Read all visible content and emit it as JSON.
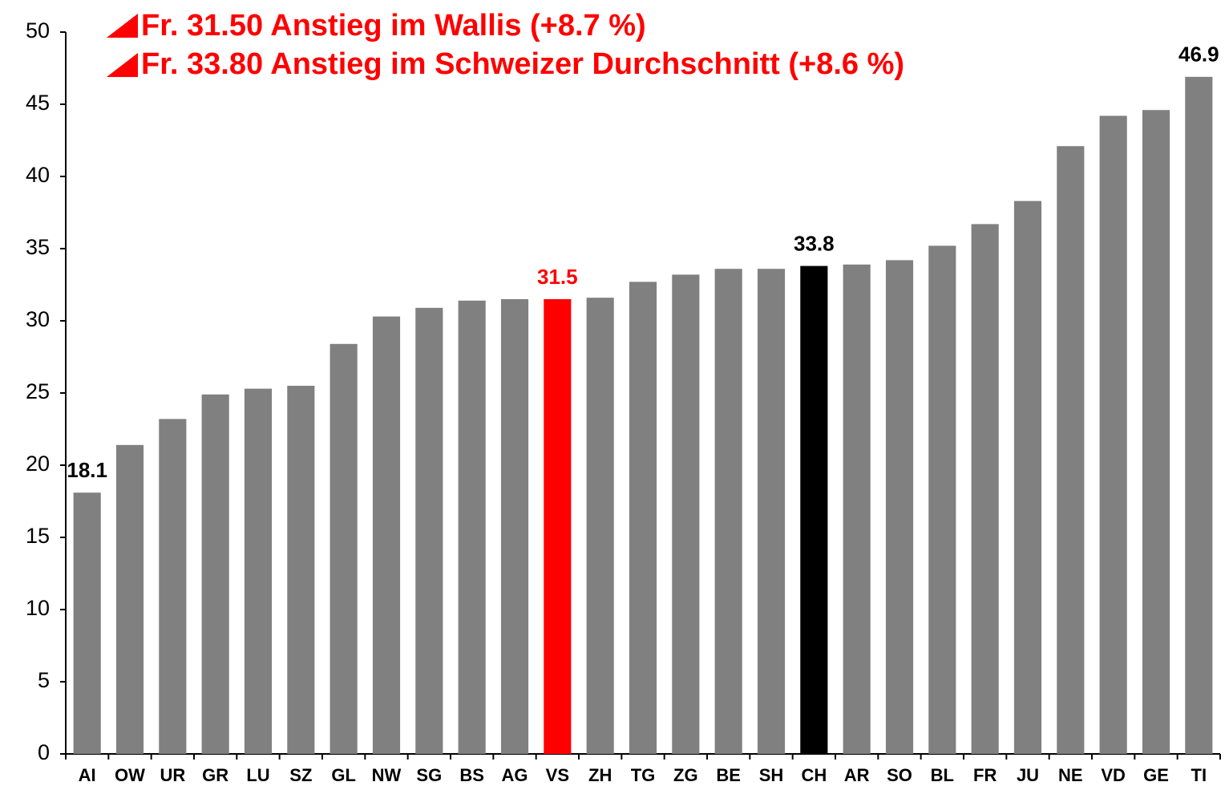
{
  "chart_data": {
    "type": "bar",
    "annotations": [
      "Fr. 31.50 Anstieg im Wallis (+8.7 %)",
      "Fr. 33.80 Anstieg im Schweizer Durchschnitt  (+8.6 %)"
    ],
    "categories": [
      "AI",
      "OW",
      "UR",
      "GR",
      "LU",
      "SZ",
      "GL",
      "NW",
      "SG",
      "BS",
      "AG",
      "VS",
      "ZH",
      "TG",
      "ZG",
      "BE",
      "SH",
      "CH",
      "AR",
      "SO",
      "BL",
      "FR",
      "JU",
      "NE",
      "VD",
      "GE",
      "TI"
    ],
    "values": [
      18.1,
      21.4,
      23.2,
      24.9,
      25.3,
      25.5,
      28.4,
      30.3,
      30.9,
      31.4,
      31.5,
      31.5,
      31.6,
      32.7,
      33.2,
      33.6,
      33.6,
      33.8,
      33.9,
      34.2,
      35.2,
      36.7,
      38.3,
      42.1,
      44.2,
      44.6,
      46.9
    ],
    "value_labels": [
      "18.1",
      null,
      null,
      null,
      null,
      null,
      null,
      null,
      null,
      null,
      null,
      "31.5",
      null,
      null,
      null,
      null,
      null,
      "33.8",
      null,
      null,
      null,
      null,
      null,
      null,
      null,
      null,
      "46.9"
    ],
    "colors": [
      "#808080",
      "#808080",
      "#808080",
      "#808080",
      "#808080",
      "#808080",
      "#808080",
      "#808080",
      "#808080",
      "#808080",
      "#808080",
      "#ff0000",
      "#808080",
      "#808080",
      "#808080",
      "#808080",
      "#808080",
      "#000000",
      "#808080",
      "#808080",
      "#808080",
      "#808080",
      "#808080",
      "#808080",
      "#808080",
      "#808080",
      "#808080"
    ],
    "ylim": [
      0,
      50
    ],
    "yticks": [
      0,
      5,
      10,
      15,
      20,
      25,
      30,
      35,
      40,
      45,
      50
    ],
    "grid": false
  }
}
